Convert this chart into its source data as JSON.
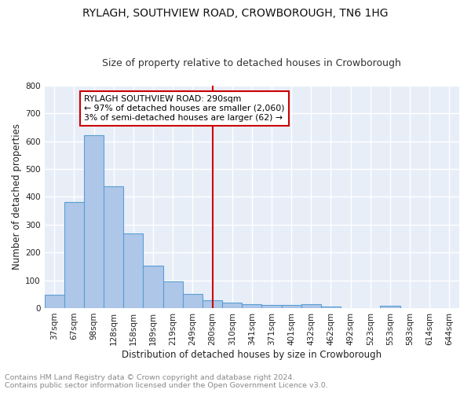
{
  "title": "RYLAGH, SOUTHVIEW ROAD, CROWBOROUGH, TN6 1HG",
  "subtitle": "Size of property relative to detached houses in Crowborough",
  "xlabel": "Distribution of detached houses by size in Crowborough",
  "ylabel": "Number of detached properties",
  "footer_line1": "Contains HM Land Registry data © Crown copyright and database right 2024.",
  "footer_line2": "Contains public sector information licensed under the Open Government Licence v3.0.",
  "categories": [
    "37sqm",
    "67sqm",
    "98sqm",
    "128sqm",
    "158sqm",
    "189sqm",
    "219sqm",
    "249sqm",
    "280sqm",
    "310sqm",
    "341sqm",
    "371sqm",
    "401sqm",
    "432sqm",
    "462sqm",
    "492sqm",
    "523sqm",
    "553sqm",
    "583sqm",
    "614sqm",
    "644sqm"
  ],
  "values": [
    47,
    382,
    622,
    438,
    268,
    153,
    96,
    52,
    28,
    20,
    14,
    12,
    12,
    14,
    5,
    0,
    0,
    8,
    0,
    0,
    0
  ],
  "bar_color": "#aec6e8",
  "bar_edge_color": "#5a9fd4",
  "vline_x": 8,
  "vline_color": "#cc0000",
  "annotation_text": "RYLAGH SOUTHVIEW ROAD: 290sqm\n← 97% of detached houses are smaller (2,060)\n3% of semi-detached houses are larger (62) →",
  "annotation_box_color": "#cc0000",
  "annotation_box_facecolor": "#ffffff",
  "ylim": [
    0,
    800
  ],
  "yticks": [
    0,
    100,
    200,
    300,
    400,
    500,
    600,
    700,
    800
  ],
  "background_color": "#e8eef8",
  "grid_color": "#ffffff",
  "title_fontsize": 10,
  "subtitle_fontsize": 9,
  "axis_label_fontsize": 8.5,
  "tick_fontsize": 7.5,
  "footer_fontsize": 6.8,
  "ann_fontsize": 7.8
}
